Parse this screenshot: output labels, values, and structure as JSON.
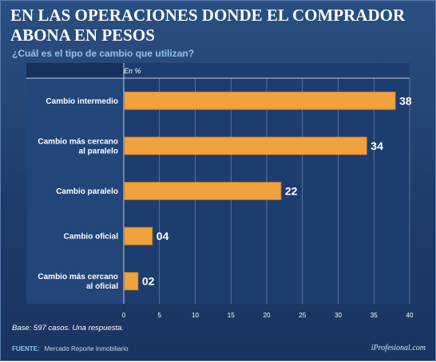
{
  "header": {
    "title": "EN LAS OPERACIONES DONDE EL COMPRADOR ABONA EN PESOS",
    "subtitle": "¿Cuál es el tipo de cambio que utilizan?"
  },
  "footer": {
    "note": "Base: 597 casos. Una respuesta.",
    "source_label": "FUENTE:",
    "source_text": "Mercado Reporte Inmobiliario",
    "brand": "iProfesional.com"
  },
  "colors": {
    "bar": "#f1a23e",
    "bar_edge": "#c67a1c",
    "plot_bg": "#1e3d6f",
    "grid": "#7e97bd",
    "text": "#ffffff"
  },
  "chart_data": {
    "type": "bar",
    "orientation": "horizontal",
    "axis_note": "En %",
    "categories": [
      [
        "Cambio intermedio"
      ],
      [
        "Cambio más cercano",
        "al paralelo"
      ],
      [
        "Cambio paralelo"
      ],
      [
        "Cambio oficial"
      ],
      [
        "Cambio más cercano",
        "al oficial"
      ]
    ],
    "values": [
      38,
      34,
      22,
      4,
      2
    ],
    "value_labels": [
      "38",
      "34",
      "22",
      "04",
      "02"
    ],
    "xlim": [
      0,
      40
    ],
    "xticks": [
      0,
      5,
      10,
      15,
      20,
      25,
      30,
      35,
      40
    ],
    "grid": true
  }
}
